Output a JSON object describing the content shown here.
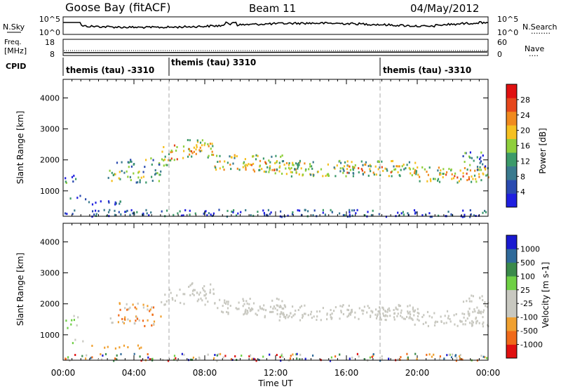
{
  "header": {
    "station": "Goose Bay (fitACF)",
    "beam": "Beam 11",
    "date": "04/May/2012"
  },
  "nsky_panel": {
    "left_label": "N.Sky",
    "left_ticks": [
      "10^5",
      "10^0"
    ],
    "right_label": "N.Search",
    "right_ticks": [
      "10^5",
      "10^0"
    ],
    "right_dots": "........"
  },
  "freq_panel": {
    "left_label_1": "Freq.",
    "left_label_2": "[MHz]",
    "left_ticks": [
      "18",
      "8"
    ],
    "right_label": "Nave",
    "right_ticks": [
      "60",
      "0"
    ],
    "right_dots": "...."
  },
  "cpid": {
    "label": "CPID",
    "entries": [
      "themis (tau) -3310",
      "themis (tau) 3310",
      "themis (tau) -3310"
    ]
  },
  "colors": {
    "power": [
      "#1f1fe0",
      "#2a4ab0",
      "#3a7a8e",
      "#3c9a6a",
      "#8fcf3c",
      "#f5c021",
      "#f08a1e",
      "#e6471c",
      "#e01010"
    ],
    "velocity": [
      "#e01010",
      "#f06a1a",
      "#f0a030",
      "#c8c8c0",
      "#c8c8c0",
      "#6fd045",
      "#3a8a4a",
      "#2f6a9a",
      "#1a1ad0"
    ]
  },
  "chart_data": [
    {
      "type": "heatmap",
      "name": "power",
      "ylabel": "Slant Range [km]",
      "yticks": [
        1000,
        2000,
        3000,
        4000
      ],
      "ylim": [
        180,
        4600
      ],
      "xlim": [
        0,
        24
      ],
      "colorbar": {
        "label": "Power [dB]",
        "ticks": [
          "4",
          "8",
          "12",
          "16",
          "20",
          "24",
          "28"
        ],
        "range": [
          0,
          32
        ]
      },
      "bands": [
        {
          "t0": 0.0,
          "t1": 0.8,
          "r0": 1250,
          "r1": 1650,
          "level": 0.3
        },
        {
          "t0": 0.3,
          "t1": 1.5,
          "r0": 760,
          "r1": 880,
          "level": 0.3
        },
        {
          "t0": 1.4,
          "t1": 4.6,
          "r0": 580,
          "r1": 700,
          "level": 0.15
        },
        {
          "t0": 2.5,
          "t1": 5.5,
          "r0": 1300,
          "r1": 1700,
          "level": 0.4
        },
        {
          "t0": 3.0,
          "t1": 6.0,
          "r0": 1800,
          "r1": 2100,
          "level": 0.35
        },
        {
          "t0": 5.5,
          "t1": 8.5,
          "r0": 2000,
          "r1": 2500,
          "level": 0.6
        },
        {
          "t0": 7.0,
          "t1": 8.5,
          "r0": 2300,
          "r1": 2700,
          "level": 0.55
        },
        {
          "t0": 8.5,
          "t1": 12.5,
          "r0": 1700,
          "r1": 2200,
          "level": 0.5
        },
        {
          "t0": 10.0,
          "t1": 14.0,
          "r0": 1600,
          "r1": 2000,
          "level": 0.6
        },
        {
          "t0": 12.0,
          "t1": 20.0,
          "r0": 1500,
          "r1": 2000,
          "level": 0.45
        },
        {
          "t0": 16.0,
          "t1": 20.0,
          "r0": 1600,
          "r1": 1900,
          "level": 0.6
        },
        {
          "t0": 19.5,
          "t1": 24.0,
          "r0": 1300,
          "r1": 1800,
          "level": 0.55
        },
        {
          "t0": 21.0,
          "t1": 23.5,
          "r0": 1400,
          "r1": 1600,
          "level": 0.65
        },
        {
          "t0": 22.5,
          "t1": 24.0,
          "r0": 1700,
          "r1": 2300,
          "level": 0.3
        },
        {
          "t0": 0.0,
          "t1": 24.0,
          "r0": 190,
          "r1": 420,
          "level": 0.2
        }
      ]
    },
    {
      "type": "heatmap",
      "name": "velocity",
      "ylabel": "Slant Range [km]",
      "yticks": [
        1000,
        2000,
        3000,
        4000
      ],
      "ylim": [
        180,
        4600
      ],
      "xlim": [
        0,
        24
      ],
      "xticks": [
        "00:00",
        "04:00",
        "08:00",
        "12:00",
        "16:00",
        "20:00",
        "00:00"
      ],
      "xlabel": "Time UT",
      "colorbar": {
        "label": "Velocity [m s-1]",
        "ticks": [
          "-1000",
          "-500",
          "-100",
          "-25",
          "25",
          "100",
          "500",
          "1000"
        ]
      }
    }
  ]
}
